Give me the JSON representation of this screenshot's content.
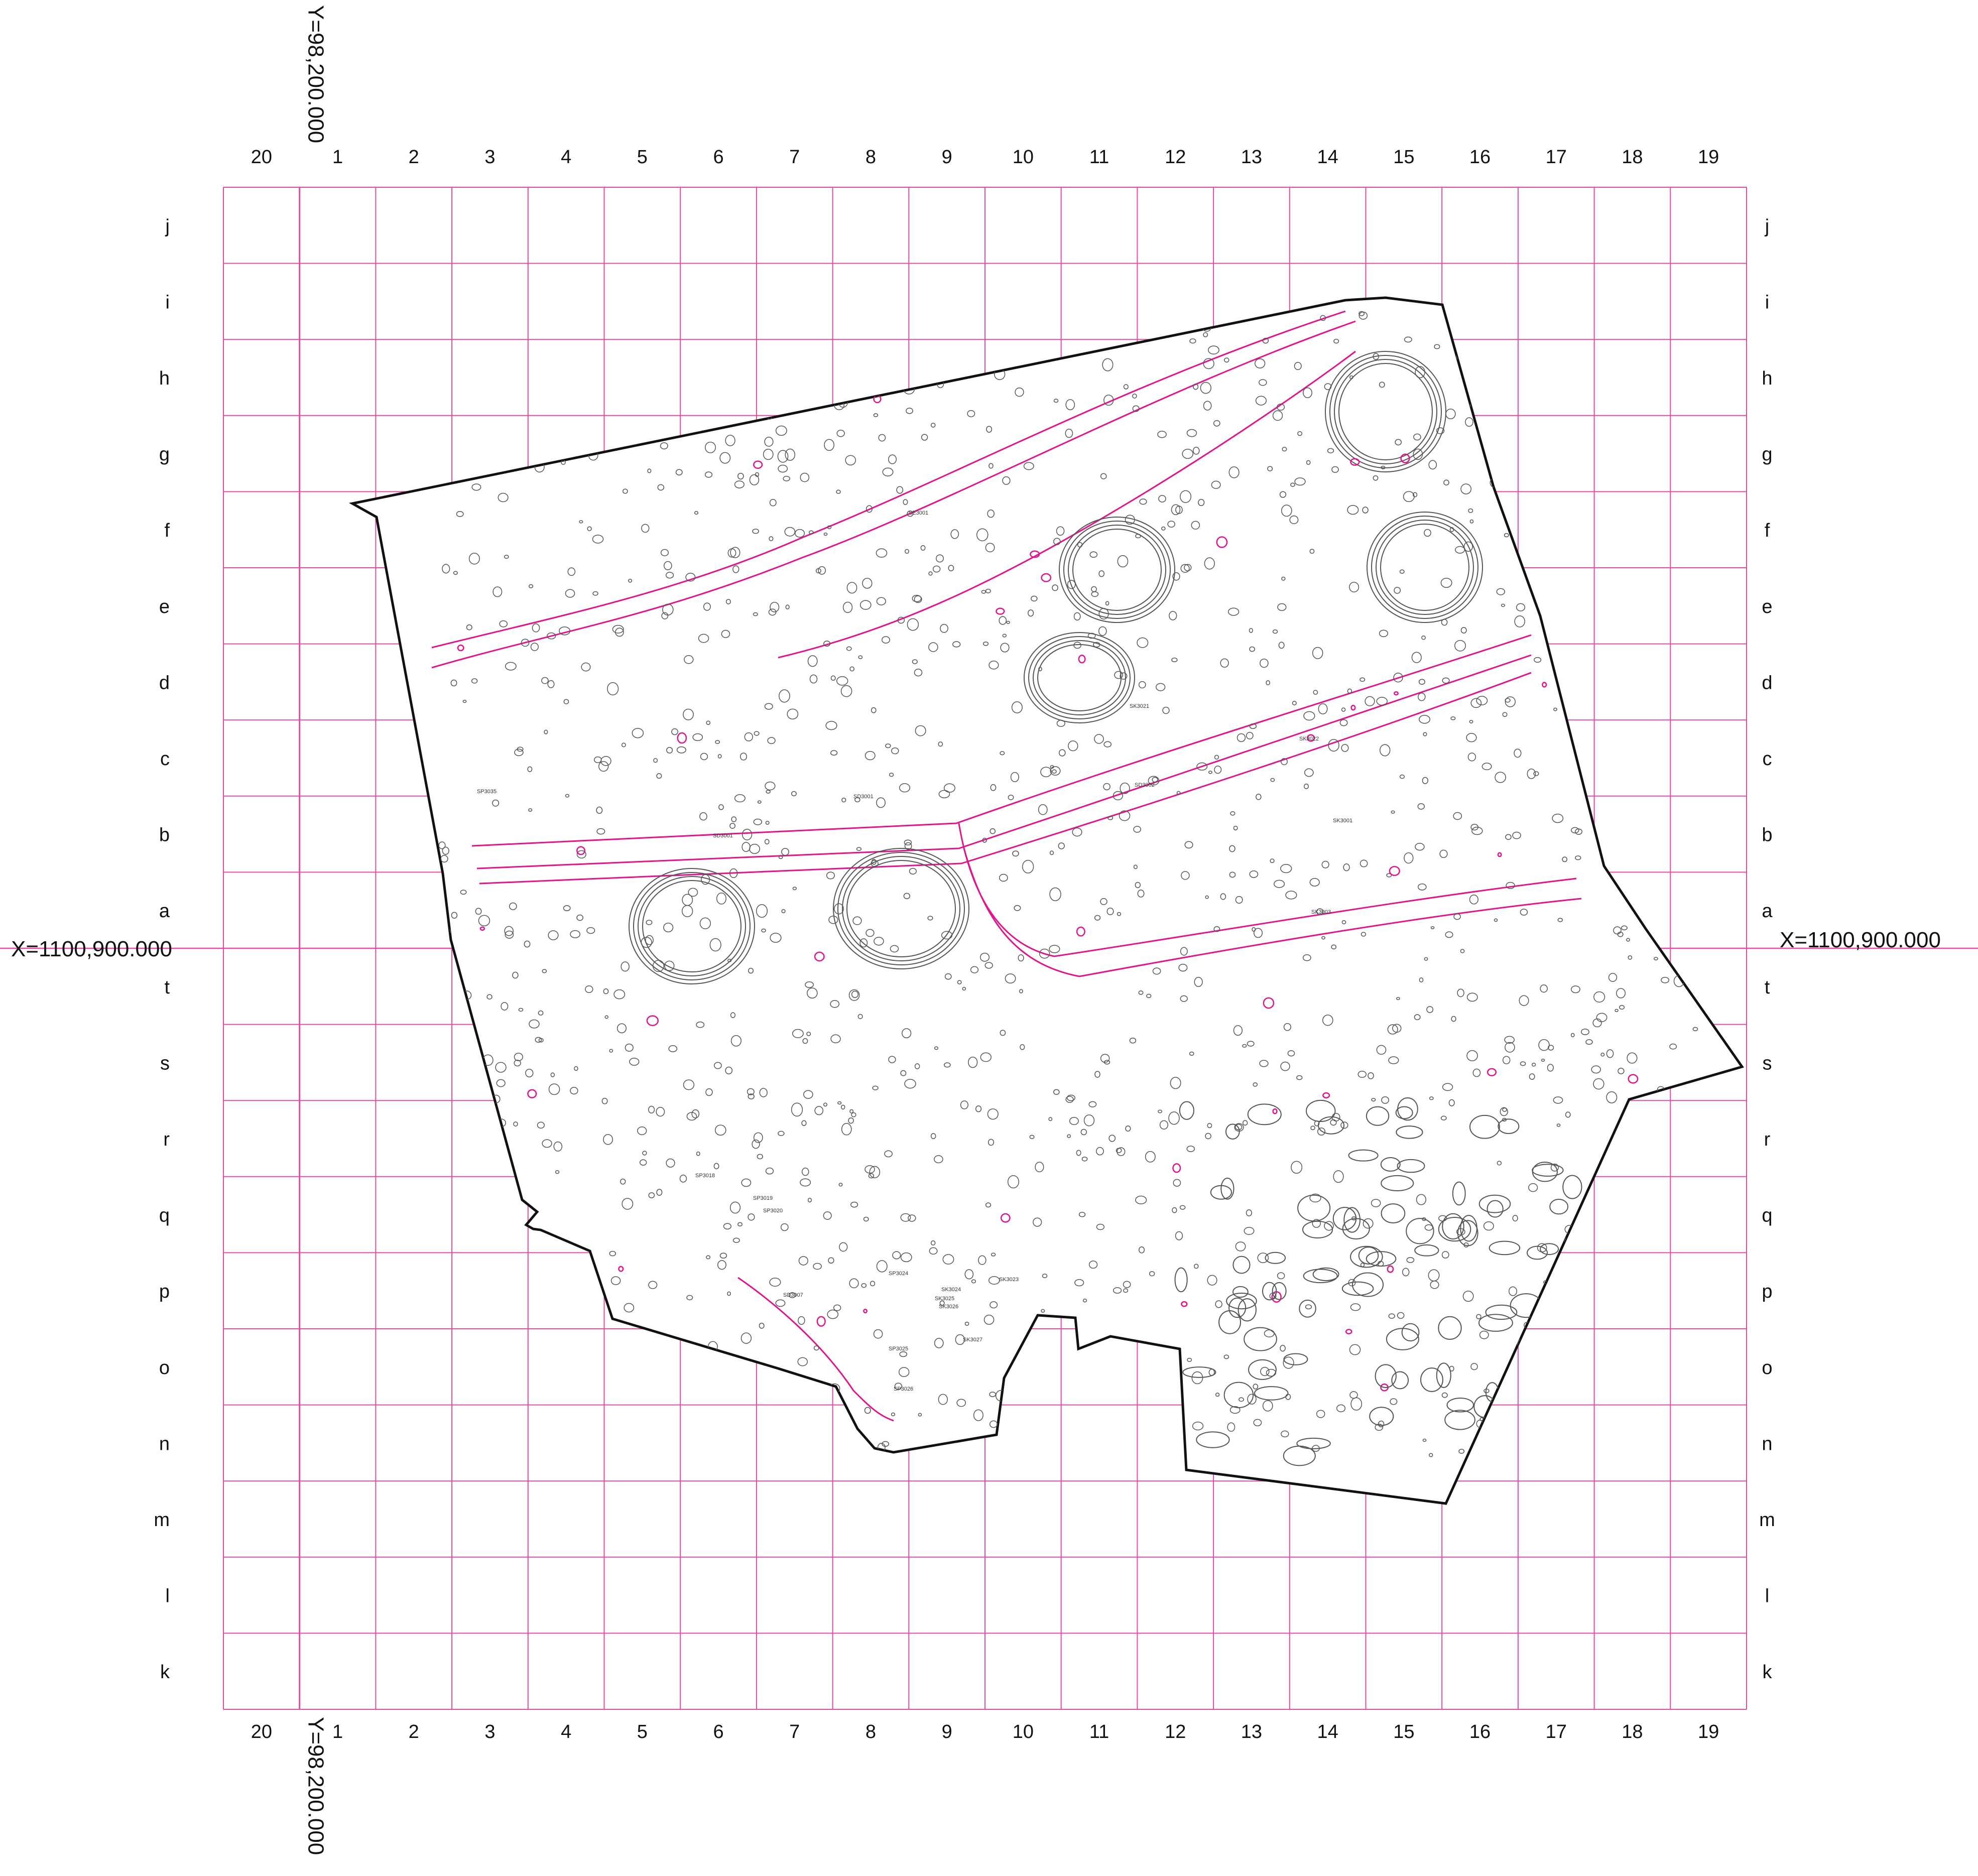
{
  "grid": {
    "columns": [
      "20",
      "1",
      "2",
      "3",
      "4",
      "5",
      "6",
      "7",
      "8",
      "9",
      "10",
      "11",
      "12",
      "13",
      "14",
      "15",
      "16",
      "17",
      "18",
      "19"
    ],
    "rows": [
      "j",
      "i",
      "h",
      "g",
      "f",
      "e",
      "d",
      "c",
      "b",
      "a",
      "t",
      "s",
      "r",
      "q",
      "p",
      "o",
      "n",
      "m",
      "l",
      "k"
    ]
  },
  "coordinates": {
    "y_axis_label": "Y=98,200.000",
    "x_axis_label": "X=1100,900.000"
  },
  "features": [
    "SE3001",
    "SD3001",
    "SD3001",
    "SD3002",
    "SK3021",
    "SK3022",
    "SP3035",
    "SK3001",
    "SK3003",
    "SK3023",
    "SK3024",
    "SK3025",
    "SK3026",
    "SK3027",
    "SP3024",
    "SP3025",
    "SP3026",
    "SD3007",
    "SP3018",
    "SP3019",
    "SP3020"
  ],
  "colors": {
    "grid_line": "#e24aa6",
    "feature_highlight": "#e0148c",
    "feature_line": "#555555",
    "site_boundary": "#111111"
  }
}
